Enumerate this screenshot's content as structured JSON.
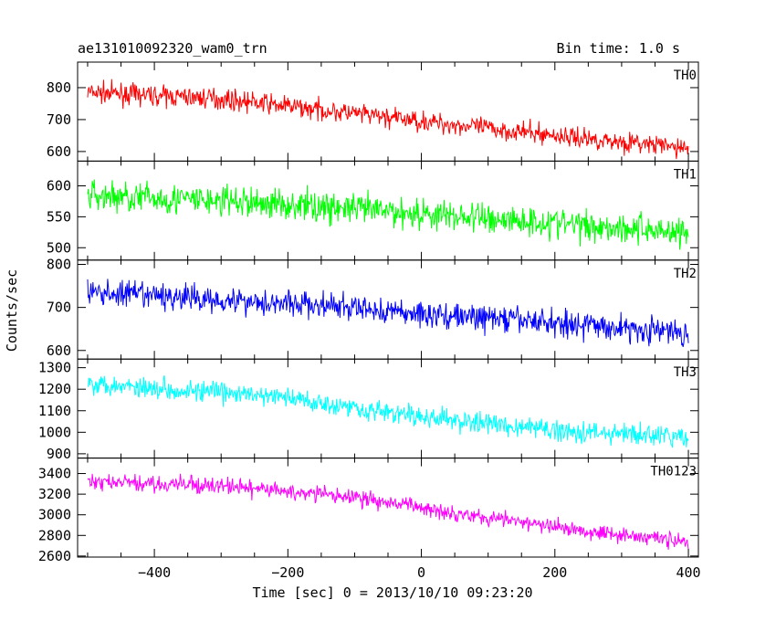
{
  "chart_data": {
    "type": "line",
    "title": "ae131010092320_wam0_trn",
    "subtitle": "Bin time: 1.0 s",
    "xlabel": "Time [sec] 0 = 2013/10/10 09:23:20",
    "ylabel": "Counts/sec",
    "xlim": [
      -515,
      415
    ],
    "x_ticks": [
      -400,
      -200,
      0,
      200,
      400
    ],
    "x_tick_labels": [
      "−400",
      "−200",
      "0",
      "200",
      "400"
    ],
    "data_x_range": [
      -500,
      400
    ],
    "bin_time_s": 1.0,
    "grid": false,
    "legend": "none",
    "panels": [
      {
        "name": "TH0",
        "color": "#ff0000",
        "ylim": [
          570,
          880
        ],
        "y_ticks": [
          600,
          700,
          800
        ],
        "trend": [
          {
            "x": -500,
            "y": 785
          },
          {
            "x": -300,
            "y": 765
          },
          {
            "x": 0,
            "y": 695
          },
          {
            "x": 200,
            "y": 650
          },
          {
            "x": 400,
            "y": 610
          }
        ],
        "scatter": 22
      },
      {
        "name": "TH1",
        "color": "#00ff00",
        "ylim": [
          480,
          640
        ],
        "y_ticks": [
          500,
          550,
          600
        ],
        "trend": [
          {
            "x": -500,
            "y": 585
          },
          {
            "x": -200,
            "y": 570
          },
          {
            "x": 0,
            "y": 555
          },
          {
            "x": 200,
            "y": 540
          },
          {
            "x": 400,
            "y": 525
          }
        ],
        "scatter": 18
      },
      {
        "name": "TH2",
        "color": "#0000ff",
        "ylim": [
          580,
          810
        ],
        "y_ticks": [
          600,
          700,
          800
        ],
        "trend": [
          {
            "x": -500,
            "y": 735
          },
          {
            "x": -200,
            "y": 710
          },
          {
            "x": 0,
            "y": 685
          },
          {
            "x": 200,
            "y": 665
          },
          {
            "x": 400,
            "y": 640
          }
        ],
        "scatter": 22
      },
      {
        "name": "TH3",
        "color": "#00ffff",
        "ylim": [
          880,
          1340
        ],
        "y_ticks": [
          900,
          1000,
          1100,
          1200,
          1300
        ],
        "trend": [
          {
            "x": -500,
            "y": 1230
          },
          {
            "x": -200,
            "y": 1160
          },
          {
            "x": 0,
            "y": 1070
          },
          {
            "x": 200,
            "y": 1010
          },
          {
            "x": 400,
            "y": 975
          }
        ],
        "scatter": 35
      },
      {
        "name": "TH0123",
        "color": "#ff00ff",
        "ylim": [
          2590,
          3550
        ],
        "y_ticks": [
          2600,
          2800,
          3000,
          3200,
          3400
        ],
        "trend": [
          {
            "x": -500,
            "y": 3320
          },
          {
            "x": -300,
            "y": 3280
          },
          {
            "x": -100,
            "y": 3170
          },
          {
            "x": 0,
            "y": 3070
          },
          {
            "x": 200,
            "y": 2880
          },
          {
            "x": 400,
            "y": 2740
          }
        ],
        "scatter": 55
      }
    ]
  }
}
